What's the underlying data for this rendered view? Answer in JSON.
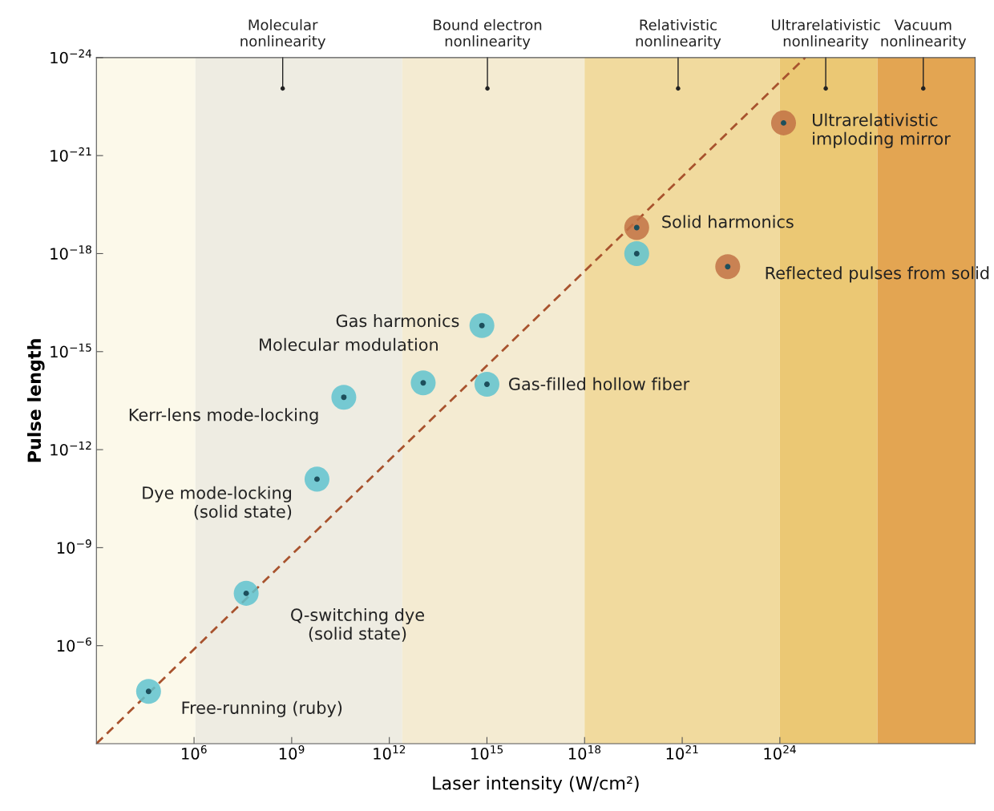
{
  "chart_data": {
    "type": "scatter",
    "xlabel": "Laser intensity (W/cm²)",
    "ylabel": "Pulse length",
    "log": "xy",
    "grid": false,
    "marker": "circle",
    "xlim": [
      1000.0,
      1e+30
    ],
    "ylim": [
      0.001,
      1e-24
    ],
    "xticks": [
      {
        "value": 1000000.0,
        "label": "10$^{6}$"
      },
      {
        "value": 1000000000.0,
        "label": "10$^{9}$"
      },
      {
        "value": 1000000000000.0,
        "label": "10$^{12}$"
      },
      {
        "value": 1000000000000000.0,
        "label": "10$^{15}$"
      },
      {
        "value": 1e+18,
        "label": "10$^{18}$"
      },
      {
        "value": 1e+21,
        "label": "10$^{21}$"
      },
      {
        "value": 1e+24,
        "label": "10$^{24}$"
      }
    ],
    "yticks": [
      {
        "value": 1e-24,
        "label": "10$^{−24}$"
      },
      {
        "value": 1e-21,
        "label": "10$^{−21}$"
      },
      {
        "value": 1e-18,
        "label": "10$^{−18}$"
      },
      {
        "value": 1e-15,
        "label": "10$^{−15}$"
      },
      {
        "value": 1e-12,
        "label": "10$^{−12}$"
      },
      {
        "value": 1e-09,
        "label": "10$^{−9}$"
      },
      {
        "value": 1e-06,
        "label": "10$^{−6}$"
      }
    ],
    "bands": [
      {
        "axis": "x",
        "from": 1000.0,
        "to": 1100000.0,
        "color": "#fcf9ea"
      },
      {
        "axis": "x",
        "from": 1100000.0,
        "to": 2500000000000.0,
        "color": "#eeece2"
      },
      {
        "axis": "x",
        "from": 2500000000000.0,
        "to": 1e+18,
        "color": "#f4ebd2"
      },
      {
        "axis": "x",
        "from": 1e+18,
        "to": 1e+24,
        "color": "#f1da9e"
      },
      {
        "axis": "x",
        "from": 1e+24,
        "to": 1e+27,
        "color": "#ebc874"
      },
      {
        "axis": "x",
        "from": 1e+27,
        "to": 1e+30,
        "color": "#e3a552"
      }
    ],
    "series": [
      {
        "type": "line",
        "line_style": "dashed",
        "marker": "none",
        "color": "#a8532e",
        "x": [
          1000.0,
          6e+24
        ],
        "values": [
          0.001,
          1e-24
        ]
      },
      {
        "color": "#5fc3cf",
        "x": [
          40000.0,
          40000000.0,
          6000000000.0,
          40000000000.0,
          11000000000000.0,
          700000000000000.0,
          1000000000000000.0,
          4e+19
        ],
        "values": [
          2.5e-05,
          2.5e-08,
          8e-12,
          2.5e-14,
          9e-15,
          1.6e-16,
          1e-14,
          1e-18
        ]
      },
      {
        "color": "#c27245",
        "x": [
          4e+19,
          2.5e+22,
          1.3e+24
        ],
        "values": [
          1.6e-19,
          2.5e-18,
          1e-22
        ]
      }
    ],
    "annotations": [
      "Molecular\nnonlinearity",
      "Bound electron\nnonlinearity",
      "Relativistic\nnonlinearity",
      "Ultrarelativistic\nnonlinearity",
      "Vacuum\nnonlinearity",
      {
        "text": "Free-running (ruby)",
        "x": 40000.0,
        "y": 2.5e-05
      },
      {
        "text": "Q-switching dye\n(solid state)",
        "x": 40000000.0,
        "y": 2.5e-08
      },
      {
        "text": "Dye mode-locking\n(solid state)",
        "x": 6000000000.0,
        "y": 8e-12
      },
      {
        "text": "Kerr-lens mode-locking",
        "x": 40000000000.0,
        "y": 2.5e-14
      },
      {
        "text": "Molecular modulation",
        "x": 11000000000000.0,
        "y": 9e-15
      },
      {
        "text": "Gas harmonics",
        "x": 700000000000000.0,
        "y": 1.6e-16
      },
      {
        "text": "Gas-filled hollow fiber",
        "x": 1000000000000000.0,
        "y": 1e-14
      },
      {
        "text": "Solid harmonics",
        "x": 4e+19,
        "y": 1.6e-19
      },
      {
        "text": "Reflected pulses from solid",
        "x": 2.5e+22,
        "y": 2.5e-18
      },
      {
        "text": "Ultrarelativistic\nimploding mirror",
        "x": 1.3e+24,
        "y": 1e-22
      }
    ]
  }
}
